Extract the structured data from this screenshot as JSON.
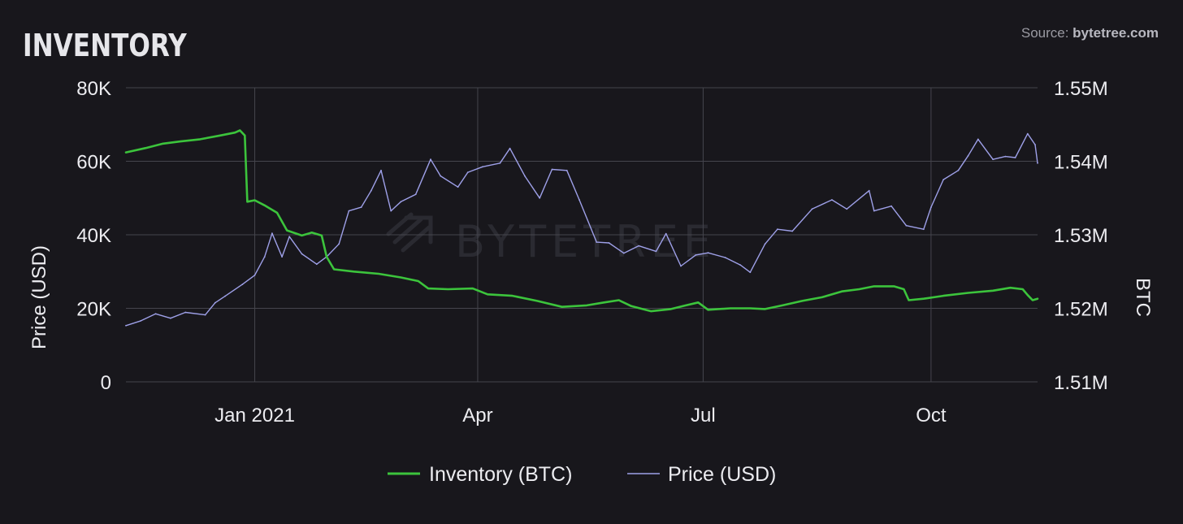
{
  "header": {
    "title": "INVENTORY",
    "source_prefix": "Source: ",
    "source_name": "bytetree.com"
  },
  "watermark": {
    "text": "BYTETREE"
  },
  "colors": {
    "background": "#18171c",
    "grid": "#45454d",
    "inventory": "#3cc43c",
    "price": "#9ea0e8"
  },
  "chart_data": {
    "type": "line",
    "x_type": "date",
    "x_range": [
      "2020-11-10",
      "2021-11-13"
    ],
    "x_ticks": [
      {
        "date": "2021-01-01",
        "label": "Jan 2021"
      },
      {
        "date": "2021-04-01",
        "label": "Apr"
      },
      {
        "date": "2021-07-01",
        "label": "Jul"
      },
      {
        "date": "2021-10-01",
        "label": "Oct"
      }
    ],
    "y_left": {
      "label": "Price (USD)",
      "range": [
        0,
        80000
      ],
      "ticks": [
        {
          "value": 0,
          "label": "0"
        },
        {
          "value": 20000,
          "label": "20K"
        },
        {
          "value": 40000,
          "label": "40K"
        },
        {
          "value": 60000,
          "label": "60K"
        },
        {
          "value": 80000,
          "label": "80K"
        }
      ]
    },
    "y_right": {
      "label": "BTC",
      "range": [
        1510000,
        1550000
      ],
      "ticks": [
        {
          "value": 1510000,
          "label": "1.51M"
        },
        {
          "value": 1520000,
          "label": "1.52M"
        },
        {
          "value": 1530000,
          "label": "1.53M"
        },
        {
          "value": 1540000,
          "label": "1.54M"
        },
        {
          "value": 1550000,
          "label": "1.55M"
        }
      ]
    },
    "grid": true,
    "legend_position": "bottom-center",
    "series": [
      {
        "name": "Inventory (BTC)",
        "axis": "right",
        "color": "#3cc43c",
        "points": [
          [
            "2020-11-10",
            1541200
          ],
          [
            "2020-11-18",
            1541800
          ],
          [
            "2020-11-25",
            1542400
          ],
          [
            "2020-12-02",
            1542700
          ],
          [
            "2020-12-10",
            1543000
          ],
          [
            "2020-12-18",
            1543500
          ],
          [
            "2020-12-24",
            1543900
          ],
          [
            "2020-12-26",
            1544200
          ],
          [
            "2020-12-28",
            1543500
          ],
          [
            "2020-12-29",
            1534500
          ],
          [
            "2021-01-01",
            1534700
          ],
          [
            "2021-01-05",
            1534000
          ],
          [
            "2021-01-10",
            1533000
          ],
          [
            "2021-01-14",
            1530600
          ],
          [
            "2021-01-20",
            1529900
          ],
          [
            "2021-01-24",
            1530300
          ],
          [
            "2021-01-28",
            1529900
          ],
          [
            "2021-01-30",
            1527000
          ],
          [
            "2021-02-02",
            1525300
          ],
          [
            "2021-02-10",
            1525000
          ],
          [
            "2021-02-20",
            1524700
          ],
          [
            "2021-03-01",
            1524200
          ],
          [
            "2021-03-08",
            1523700
          ],
          [
            "2021-03-12",
            1522700
          ],
          [
            "2021-03-20",
            1522600
          ],
          [
            "2021-03-30",
            1522700
          ],
          [
            "2021-04-05",
            1521900
          ],
          [
            "2021-04-15",
            1521700
          ],
          [
            "2021-04-25",
            1521000
          ],
          [
            "2021-05-05",
            1520200
          ],
          [
            "2021-05-15",
            1520400
          ],
          [
            "2021-05-22",
            1520800
          ],
          [
            "2021-05-28",
            1521100
          ],
          [
            "2021-06-02",
            1520300
          ],
          [
            "2021-06-10",
            1519600
          ],
          [
            "2021-06-18",
            1519900
          ],
          [
            "2021-06-24",
            1520400
          ],
          [
            "2021-06-29",
            1520800
          ],
          [
            "2021-07-03",
            1519800
          ],
          [
            "2021-07-12",
            1520000
          ],
          [
            "2021-07-20",
            1520000
          ],
          [
            "2021-07-26",
            1519900
          ],
          [
            "2021-08-02",
            1520400
          ],
          [
            "2021-08-10",
            1521000
          ],
          [
            "2021-08-18",
            1521500
          ],
          [
            "2021-08-26",
            1522300
          ],
          [
            "2021-09-02",
            1522600
          ],
          [
            "2021-09-08",
            1523000
          ],
          [
            "2021-09-16",
            1523000
          ],
          [
            "2021-09-20",
            1522600
          ],
          [
            "2021-09-22",
            1521100
          ],
          [
            "2021-09-28",
            1521300
          ],
          [
            "2021-10-06",
            1521700
          ],
          [
            "2021-10-16",
            1522100
          ],
          [
            "2021-10-26",
            1522400
          ],
          [
            "2021-11-02",
            1522800
          ],
          [
            "2021-11-07",
            1522600
          ],
          [
            "2021-11-09",
            1521800
          ],
          [
            "2021-11-11",
            1521100
          ],
          [
            "2021-11-13",
            1521300
          ]
        ]
      },
      {
        "name": "Price (USD)",
        "axis": "left",
        "color": "#9ea0e8",
        "points": [
          [
            "2020-11-10",
            15300
          ],
          [
            "2020-11-16",
            16600
          ],
          [
            "2020-11-22",
            18500
          ],
          [
            "2020-11-28",
            17300
          ],
          [
            "2020-12-04",
            18900
          ],
          [
            "2020-12-12",
            18200
          ],
          [
            "2020-12-16",
            21500
          ],
          [
            "2020-12-20",
            23300
          ],
          [
            "2020-12-27",
            26500
          ],
          [
            "2021-01-01",
            29000
          ],
          [
            "2021-01-05",
            34000
          ],
          [
            "2021-01-08",
            40400
          ],
          [
            "2021-01-12",
            34000
          ],
          [
            "2021-01-15",
            39500
          ],
          [
            "2021-01-20",
            34800
          ],
          [
            "2021-01-26",
            32000
          ],
          [
            "2021-01-30",
            34000
          ],
          [
            "2021-02-04",
            37500
          ],
          [
            "2021-02-08",
            46500
          ],
          [
            "2021-02-13",
            47500
          ],
          [
            "2021-02-17",
            52000
          ],
          [
            "2021-02-21",
            57500
          ],
          [
            "2021-02-25",
            46500
          ],
          [
            "2021-03-01",
            49000
          ],
          [
            "2021-03-07",
            51000
          ],
          [
            "2021-03-13",
            60500
          ],
          [
            "2021-03-17",
            56000
          ],
          [
            "2021-03-24",
            53000
          ],
          [
            "2021-03-28",
            57000
          ],
          [
            "2021-04-03",
            58500
          ],
          [
            "2021-04-10",
            59500
          ],
          [
            "2021-04-14",
            63500
          ],
          [
            "2021-04-20",
            56000
          ],
          [
            "2021-04-26",
            50000
          ],
          [
            "2021-05-01",
            57800
          ],
          [
            "2021-05-07",
            57500
          ],
          [
            "2021-05-12",
            49500
          ],
          [
            "2021-05-19",
            38000
          ],
          [
            "2021-05-24",
            37800
          ],
          [
            "2021-05-30",
            35000
          ],
          [
            "2021-06-05",
            37000
          ],
          [
            "2021-06-12",
            35500
          ],
          [
            "2021-06-16",
            40300
          ],
          [
            "2021-06-22",
            31500
          ],
          [
            "2021-06-28",
            34500
          ],
          [
            "2021-07-03",
            35100
          ],
          [
            "2021-07-10",
            33800
          ],
          [
            "2021-07-16",
            31800
          ],
          [
            "2021-07-20",
            29800
          ],
          [
            "2021-07-26",
            37500
          ],
          [
            "2021-07-31",
            41500
          ],
          [
            "2021-08-06",
            41000
          ],
          [
            "2021-08-14",
            47000
          ],
          [
            "2021-08-22",
            49500
          ],
          [
            "2021-08-28",
            47000
          ],
          [
            "2021-09-06",
            52000
          ],
          [
            "2021-09-08",
            46500
          ],
          [
            "2021-09-15",
            47800
          ],
          [
            "2021-09-21",
            42500
          ],
          [
            "2021-09-28",
            41500
          ],
          [
            "2021-10-01",
            47500
          ],
          [
            "2021-10-06",
            55000
          ],
          [
            "2021-10-12",
            57500
          ],
          [
            "2021-10-16",
            61500
          ],
          [
            "2021-10-20",
            66000
          ],
          [
            "2021-10-26",
            60500
          ],
          [
            "2021-10-31",
            61300
          ],
          [
            "2021-11-04",
            61000
          ],
          [
            "2021-11-09",
            67500
          ],
          [
            "2021-11-12",
            64500
          ],
          [
            "2021-11-13",
            59500
          ]
        ]
      }
    ]
  }
}
